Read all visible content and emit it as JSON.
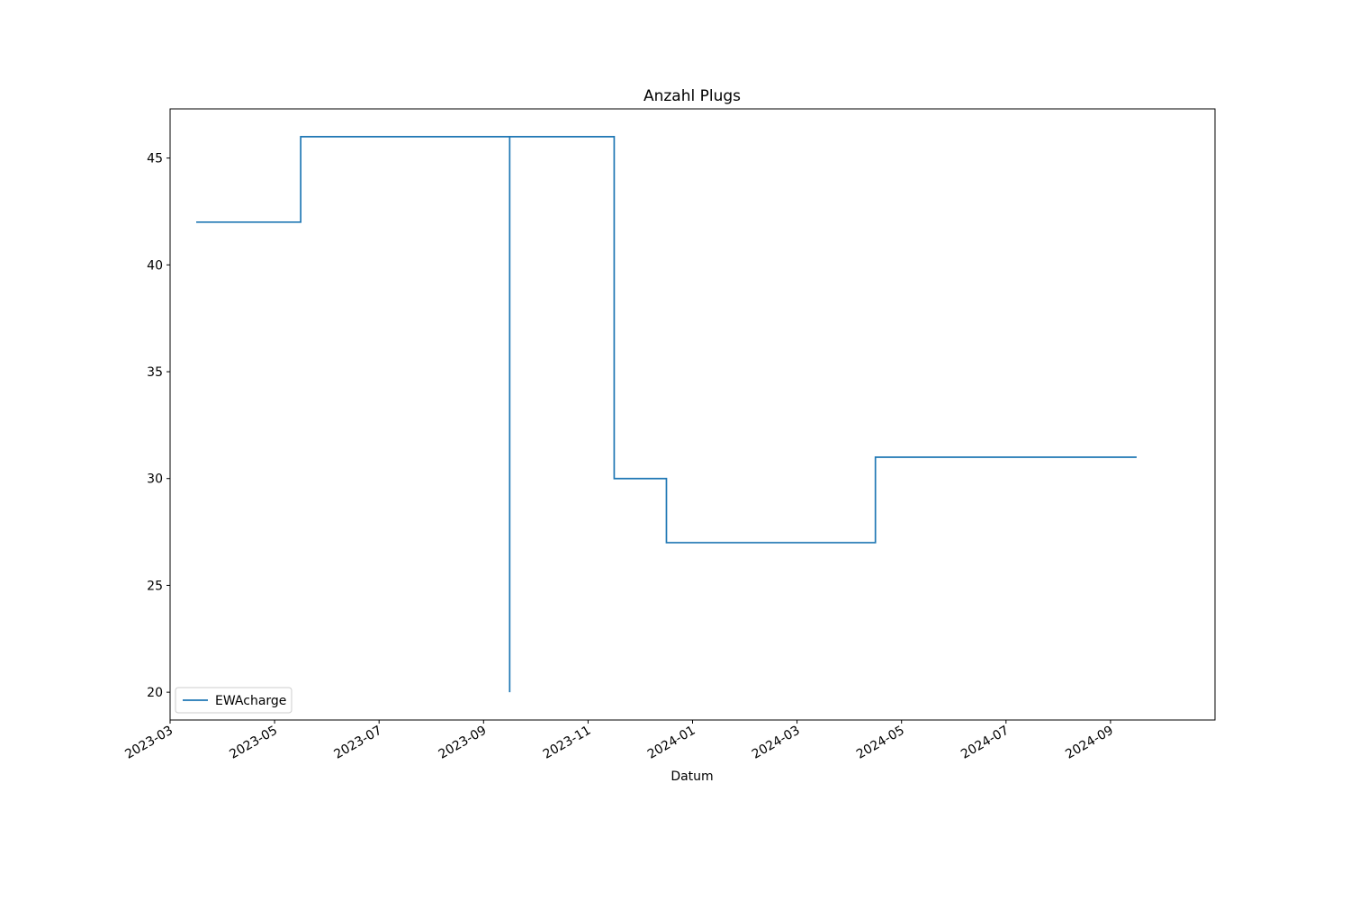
{
  "chart_data": {
    "type": "line",
    "title": "Anzahl Plugs",
    "x_label": "Datum",
    "x": [
      "2023-03",
      "2023-05",
      "2023-05",
      "2023-09",
      "2023-09",
      "2023-09",
      "2023-09",
      "2023-11",
      "2023-11",
      "2023-12",
      "2023-12",
      "2024-04",
      "2024-04",
      "2024-09"
    ],
    "series": [
      {
        "name": "EWAcharge",
        "color": "#1f77b4",
        "values": [
          42,
          42,
          46,
          46,
          20,
          20,
          46,
          46,
          30,
          30,
          27,
          27,
          31,
          31
        ]
      }
    ],
    "xlim": [
      "2023-03",
      "2024-10"
    ],
    "xticks": [
      "2023-03",
      "2023-05",
      "2023-07",
      "2023-09",
      "2023-11",
      "2024-01",
      "2024-03",
      "2024-05",
      "2024-07",
      "2024-09"
    ],
    "ylim": [
      18.7,
      47.3
    ],
    "yticks": [
      20,
      25,
      30,
      35,
      40,
      45
    ],
    "grid": false,
    "legend": "lower left"
  }
}
